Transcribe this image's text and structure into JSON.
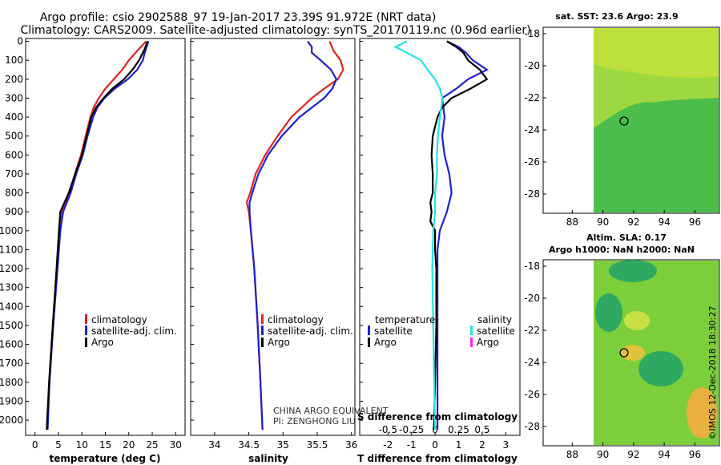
{
  "title": {
    "line1": "Argo profile: csio 2902588_97 19-Jan-2017 23.39S 91.972E (NRT data)",
    "line2": "Climatology: CARS2009. Satellite-adjusted climatology: synTS_20170119.nc (0.96d earlier)"
  },
  "colors": {
    "climatology": "#e0221c",
    "satellite": "#1f1fd0",
    "argo": "#000000",
    "sat_salinity": "#22e4e4",
    "argo_salinity": "#ff22ff"
  },
  "chart_data": [
    {
      "type": "line",
      "name": "temperature",
      "xlabel": "temperature (deg C)",
      "xlim": [
        -2,
        32
      ],
      "ylim": [
        2080,
        -15
      ],
      "xticks": [
        0,
        5,
        10,
        15,
        20,
        25,
        30
      ],
      "yticks": [
        0,
        100,
        200,
        300,
        400,
        500,
        600,
        700,
        800,
        900,
        1000,
        1100,
        1200,
        1300,
        1400,
        1500,
        1600,
        1700,
        1800,
        1900,
        2000
      ],
      "legend": [
        "climatology",
        "satellite-adj. clim.",
        "Argo"
      ],
      "series": [
        {
          "name": "climatology",
          "depth": [
            0,
            50,
            100,
            150,
            200,
            250,
            300,
            350,
            400,
            500,
            600,
            700,
            800,
            900,
            1000,
            1200,
            1500,
            1800,
            2050
          ],
          "values": [
            23.7,
            21.8,
            20.0,
            18.6,
            16.8,
            15.0,
            13.6,
            12.5,
            11.8,
            10.8,
            9.8,
            8.5,
            7.3,
            5.8,
            5.3,
            4.7,
            3.8,
            3.0,
            2.6
          ]
        },
        {
          "name": "satellite-adj. clim.",
          "depth": [
            0,
            30,
            60,
            100,
            150,
            200,
            250,
            300,
            350,
            400,
            500,
            600,
            700,
            800,
            900,
            1000,
            1200,
            1500,
            1800,
            2050
          ],
          "values": [
            24.2,
            23.8,
            23.4,
            23.0,
            21.8,
            19.8,
            17.0,
            14.8,
            13.3,
            12.4,
            11.2,
            10.2,
            8.8,
            7.6,
            6.0,
            5.4,
            4.8,
            3.9,
            3.1,
            2.7
          ]
        },
        {
          "name": "Argo",
          "depth": [
            0,
            20,
            40,
            60,
            100,
            150,
            200,
            250,
            300,
            350,
            400,
            500,
            600,
            700,
            800,
            900,
            1000,
            1200,
            1500,
            1800,
            2050
          ],
          "values": [
            24.0,
            23.7,
            23.4,
            23.0,
            22.2,
            20.8,
            19.0,
            16.5,
            14.6,
            13.0,
            12.0,
            11.0,
            10.0,
            8.6,
            7.2,
            5.4,
            5.1,
            4.6,
            3.8,
            3.0,
            2.5
          ]
        }
      ]
    },
    {
      "type": "line",
      "name": "salinity",
      "xlabel": "salinity",
      "xlim": [
        33.65,
        36.05
      ],
      "ylim": [
        2080,
        -15
      ],
      "xticks": [
        34,
        34.5,
        35,
        35.5,
        36
      ],
      "legend": [
        "climatology",
        "satellite-adj. clim.",
        "Argo"
      ],
      "series": [
        {
          "name": "climatology",
          "depth": [
            0,
            50,
            100,
            150,
            200,
            250,
            300,
            400,
            500,
            600,
            700,
            800,
            850,
            900,
            1000,
            1200,
            1500,
            1800,
            2050
          ],
          "values": [
            35.68,
            35.74,
            35.84,
            35.88,
            35.8,
            35.6,
            35.42,
            35.12,
            34.92,
            34.74,
            34.6,
            34.52,
            34.47,
            34.5,
            34.53,
            34.58,
            34.63,
            34.67,
            34.7
          ]
        },
        {
          "name": "satellite-adj. clim.",
          "depth": [
            0,
            30,
            60,
            100,
            150,
            200,
            250,
            300,
            400,
            500,
            600,
            700,
            800,
            850,
            900,
            1000,
            1200,
            1500,
            1800,
            2050
          ],
          "values": [
            35.36,
            35.42,
            35.42,
            35.55,
            35.7,
            35.78,
            35.72,
            35.6,
            35.24,
            34.98,
            34.78,
            34.64,
            34.55,
            34.51,
            34.51,
            34.53,
            34.58,
            34.63,
            34.67,
            34.7
          ]
        }
      ]
    },
    {
      "type": "line",
      "name": "differences",
      "xlabel": "T difference from climatology",
      "xlabel_top": "S difference from climatology",
      "xlim": [
        -3.2,
        3.6
      ],
      "ylim": [
        2080,
        -15
      ],
      "xticks": [
        -2,
        -1,
        0,
        1,
        2,
        3
      ],
      "xticks_top": [
        {
          "v": -0.5,
          "label": "-0.5"
        },
        {
          "v": -0.25,
          "label": "-0.25"
        },
        {
          "v": 0,
          "label": "0"
        },
        {
          "v": 0.25,
          "label": "0.25"
        },
        {
          "v": 0.5,
          "label": "0.5"
        }
      ],
      "s_scale": 4,
      "legend_temperature": {
        "title": "temperature",
        "items": [
          "satellite",
          "Argo"
        ]
      },
      "legend_salinity": {
        "title": "salinity",
        "items": [
          "satellite",
          "Argo"
        ]
      },
      "series": [
        {
          "name": "T satellite",
          "depth": [
            0,
            30,
            60,
            100,
            150,
            200,
            250,
            300,
            400,
            500,
            600,
            700,
            800,
            900,
            1000,
            1100,
            1300,
            1500,
            1800,
            2050
          ],
          "values": [
            0.5,
            1.0,
            1.3,
            1.6,
            2.2,
            1.4,
            0.9,
            0.3,
            0.4,
            0.3,
            0.4,
            0.6,
            0.7,
            0.5,
            0.2,
            0.1,
            0.1,
            0.1,
            0.1,
            0.1
          ]
        },
        {
          "name": "T Argo",
          "depth": [
            0,
            30,
            60,
            100,
            150,
            200,
            250,
            300,
            350,
            400,
            500,
            600,
            700,
            800,
            850,
            900,
            950,
            1000,
            1100,
            1200,
            1500,
            1800,
            2050
          ],
          "values": [
            0.5,
            0.9,
            1.2,
            1.4,
            1.9,
            2.2,
            1.5,
            0.7,
            0.3,
            0.1,
            -0.1,
            -0.15,
            -0.1,
            -0.1,
            -0.2,
            -0.15,
            -0.2,
            0.0,
            0.0,
            0.05,
            0.05,
            0.0,
            -0.05
          ]
        },
        {
          "name": "S satellite",
          "depth": [
            0,
            30,
            60,
            100,
            150,
            200,
            250,
            300,
            400,
            500,
            600,
            700,
            800,
            900,
            1000,
            1200,
            1500,
            1800,
            2050
          ],
          "values": [
            -0.3,
            -0.42,
            -0.3,
            -0.15,
            -0.08,
            0.0,
            0.05,
            0.08,
            0.05,
            0.03,
            0.02,
            0.02,
            0.0,
            0.0,
            -0.02,
            -0.03,
            -0.02,
            -0.01,
            0.0
          ]
        }
      ]
    }
  ],
  "maps": [
    {
      "title": "sat. SST: 23.6 Argo: 23.9",
      "xticks": [
        88,
        90,
        92,
        94,
        96
      ],
      "yticks": [
        -18,
        -20,
        -22,
        -24,
        -26,
        -28
      ]
    },
    {
      "title_line1": "Altim. SLA: 0.17",
      "title_line2": "Argo h1000: NaN h2000: NaN",
      "xticks": [
        88,
        90,
        92,
        94,
        96
      ],
      "yticks": [
        -18,
        -20,
        -22,
        -24,
        -26,
        -28
      ]
    }
  ],
  "notes": {
    "line1": "CHINA ARGO EQUIVALENT",
    "line2": "PI: ZENGHONG LIU"
  },
  "stamp": "©IMOS 12-Dec-2018 18:30:27"
}
